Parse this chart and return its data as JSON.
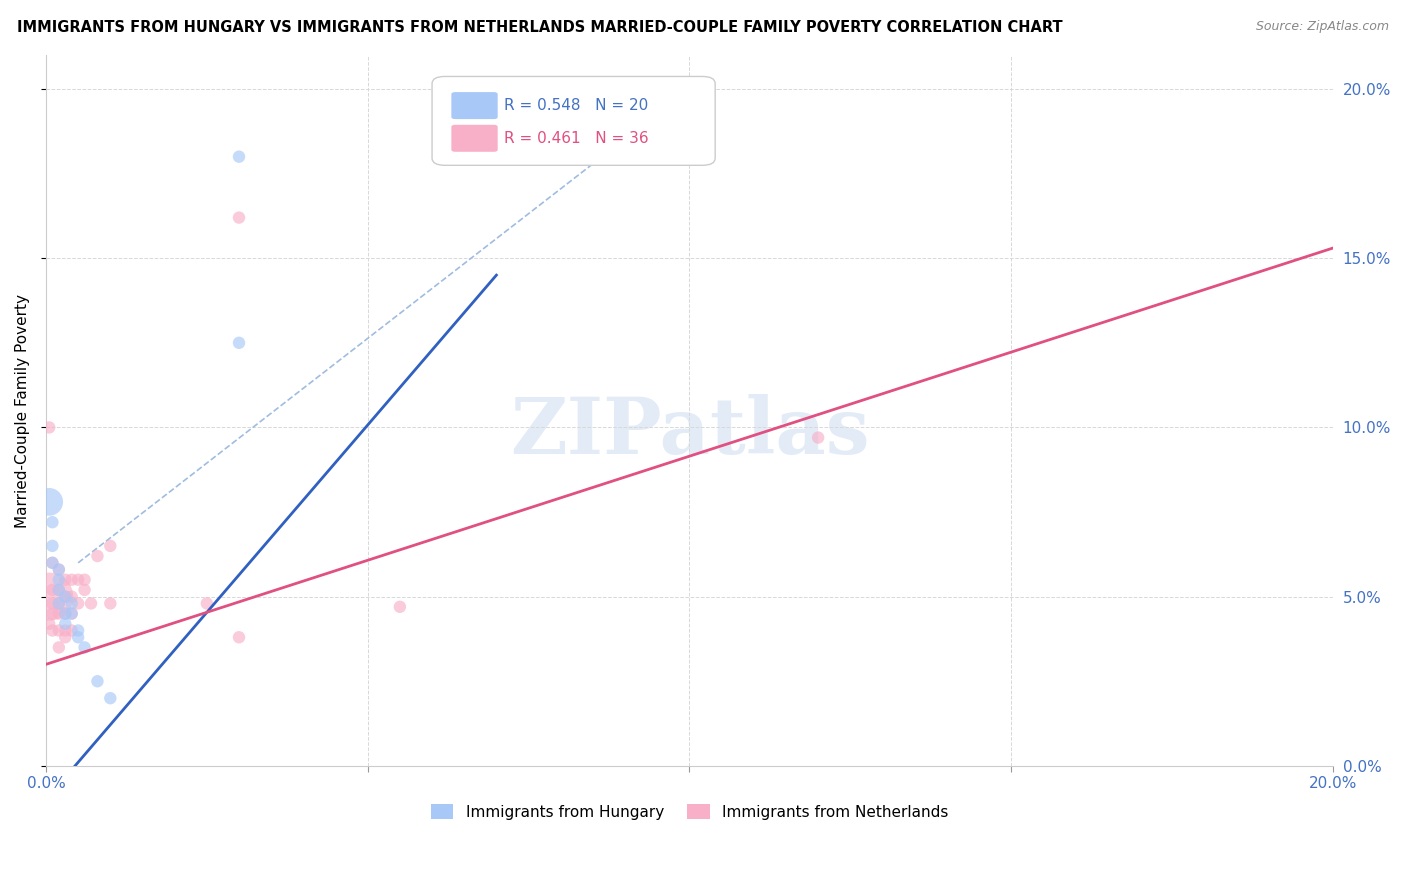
{
  "title": "IMMIGRANTS FROM HUNGARY VS IMMIGRANTS FROM NETHERLANDS MARRIED-COUPLE FAMILY POVERTY CORRELATION CHART",
  "source": "Source: ZipAtlas.com",
  "ylabel": "Married-Couple Family Poverty",
  "xmin": 0.0,
  "xmax": 0.2,
  "ymin": 0.0,
  "ymax": 0.21,
  "legend_hungary": {
    "R": "0.548",
    "N": "20"
  },
  "legend_netherlands": {
    "R": "0.461",
    "N": "36"
  },
  "color_hungary": "#a8c8f8",
  "color_netherlands": "#f8b0c8",
  "line_hungary": "#3060c0",
  "line_netherlands": "#e05080",
  "line_dashed_color": "#a0bce0",
  "watermark": "ZIPatlas",
  "hungary_points": [
    [
      0.0005,
      0.078
    ],
    [
      0.001,
      0.072
    ],
    [
      0.001,
      0.065
    ],
    [
      0.001,
      0.06
    ],
    [
      0.002,
      0.058
    ],
    [
      0.002,
      0.055
    ],
    [
      0.002,
      0.052
    ],
    [
      0.002,
      0.048
    ],
    [
      0.003,
      0.05
    ],
    [
      0.003,
      0.045
    ],
    [
      0.003,
      0.042
    ],
    [
      0.004,
      0.048
    ],
    [
      0.004,
      0.045
    ],
    [
      0.005,
      0.04
    ],
    [
      0.005,
      0.038
    ],
    [
      0.006,
      0.035
    ],
    [
      0.008,
      0.025
    ],
    [
      0.01,
      0.02
    ],
    [
      0.03,
      0.125
    ],
    [
      0.03,
      0.18
    ]
  ],
  "hungary_sizes": [
    400,
    80,
    80,
    80,
    80,
    80,
    80,
    80,
    80,
    80,
    80,
    80,
    80,
    80,
    80,
    80,
    80,
    80,
    80,
    80
  ],
  "netherlands_points": [
    [
      0.0005,
      0.05
    ],
    [
      0.0005,
      0.042
    ],
    [
      0.001,
      0.06
    ],
    [
      0.001,
      0.052
    ],
    [
      0.001,
      0.048
    ],
    [
      0.001,
      0.045
    ],
    [
      0.001,
      0.04
    ],
    [
      0.002,
      0.058
    ],
    [
      0.002,
      0.052
    ],
    [
      0.002,
      0.048
    ],
    [
      0.002,
      0.045
    ],
    [
      0.002,
      0.04
    ],
    [
      0.002,
      0.035
    ],
    [
      0.003,
      0.055
    ],
    [
      0.003,
      0.05
    ],
    [
      0.003,
      0.045
    ],
    [
      0.003,
      0.04
    ],
    [
      0.003,
      0.038
    ],
    [
      0.004,
      0.055
    ],
    [
      0.004,
      0.05
    ],
    [
      0.004,
      0.045
    ],
    [
      0.004,
      0.04
    ],
    [
      0.005,
      0.055
    ],
    [
      0.005,
      0.048
    ],
    [
      0.006,
      0.055
    ],
    [
      0.006,
      0.052
    ],
    [
      0.007,
      0.048
    ],
    [
      0.008,
      0.062
    ],
    [
      0.01,
      0.065
    ],
    [
      0.01,
      0.048
    ],
    [
      0.025,
      0.048
    ],
    [
      0.03,
      0.038
    ],
    [
      0.03,
      0.162
    ],
    [
      0.055,
      0.047
    ],
    [
      0.12,
      0.097
    ],
    [
      0.0005,
      0.1
    ]
  ],
  "netherlands_sizes": [
    1200,
    80,
    80,
    80,
    80,
    80,
    80,
    80,
    80,
    80,
    80,
    80,
    80,
    80,
    80,
    80,
    80,
    80,
    80,
    80,
    80,
    80,
    80,
    80,
    80,
    80,
    80,
    80,
    80,
    80,
    80,
    80,
    80,
    80,
    80,
    80
  ],
  "hungary_regline": [
    0.0,
    -0.01,
    0.07,
    0.145
  ],
  "netherlands_regline": [
    0.0,
    0.03,
    0.2,
    0.153
  ],
  "dashed_line": [
    0.005,
    0.06,
    0.1,
    0.2
  ]
}
